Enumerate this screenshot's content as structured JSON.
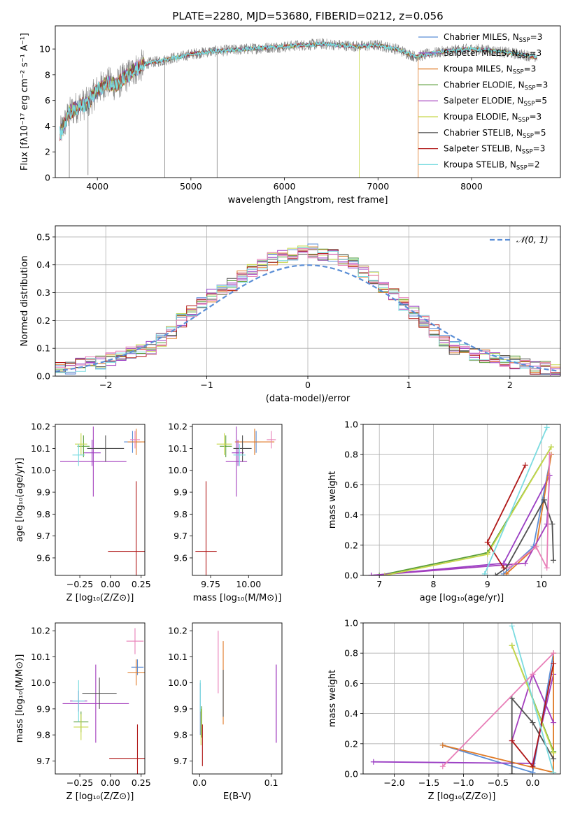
{
  "figure": {
    "title": "PLATE=2280, MJD=53680, FIBERID=0212, z=0.056"
  },
  "palette": {
    "Chabrier MILES": "#5b8ed6",
    "Salpeter MILES": "#9b3fc4",
    "Kroupa MILES": "#e07b28",
    "Chabrier ELODIE": "#5a9e3a",
    "Salpeter ELODIE": "#a43fbe",
    "Kroupa ELODIE": "#c7d84a",
    "Chabrier STELIB": "#505050",
    "Salpeter STELIB": "#b01818",
    "Kroupa STELIB": "#7adbe0",
    "pink": "#e87fb8",
    "data": "#808080",
    "gauss": "#5b8ed6"
  },
  "chart_data": [
    {
      "id": "spectrum",
      "type": "line",
      "title": "PLATE=2280, MJD=53680, FIBERID=0212, z=0.056",
      "xlabel": "wavelength [Angstrom, rest frame]",
      "ylabel": "Flux [fλ10⁻¹⁷ erg cm⁻² s⁻¹ A⁻¹]",
      "xlim": [
        3550,
        8950
      ],
      "ylim": [
        0,
        11.8
      ],
      "xticks": [
        4000,
        5000,
        6000,
        7000,
        8000
      ],
      "yticks": [
        0,
        2,
        4,
        6,
        8,
        10
      ],
      "grid": false,
      "legend_position": "top-right",
      "legend": [
        "Chabrier MILES, N_SSP=3",
        "Salpeter MILES, N_SSP=3",
        "Kroupa MILES, N_SSP=3",
        "Chabrier ELODIE, N_SSP=3",
        "Salpeter ELODIE, N_SSP=5",
        "Kroupa ELODIE, N_SSP=3",
        "Chabrier STELIB, N_SSP=5",
        "Salpeter STELIB, N_SSP=3",
        "Kroupa STELIB, N_SSP=2"
      ],
      "continuum": [
        [
          3600,
          3.4
        ],
        [
          3700,
          5.0
        ],
        [
          3800,
          5.6
        ],
        [
          3900,
          5.8
        ],
        [
          4000,
          6.8
        ],
        [
          4100,
          7.4
        ],
        [
          4200,
          7.2
        ],
        [
          4300,
          7.8
        ],
        [
          4400,
          8.4
        ],
        [
          4500,
          8.8
        ],
        [
          4600,
          9.0
        ],
        [
          4700,
          9.1
        ],
        [
          4800,
          9.3
        ],
        [
          4900,
          9.4
        ],
        [
          5000,
          9.6
        ],
        [
          5200,
          9.8
        ],
        [
          5400,
          9.9
        ],
        [
          5600,
          10.0
        ],
        [
          5800,
          10.1
        ],
        [
          6000,
          10.2
        ],
        [
          6200,
          10.3
        ],
        [
          6400,
          10.4
        ],
        [
          6600,
          10.3
        ],
        [
          6800,
          10.2
        ],
        [
          7000,
          10.3
        ],
        [
          7200,
          10.0
        ],
        [
          7400,
          9.4
        ],
        [
          7600,
          9.7
        ],
        [
          7800,
          9.9
        ],
        [
          8000,
          10.0
        ],
        [
          8200,
          9.9
        ],
        [
          8400,
          9.7
        ],
        [
          8600,
          9.5
        ],
        [
          8700,
          9.3
        ]
      ]
    },
    {
      "id": "residuals",
      "type": "bar",
      "xlabel": "(data-model)/error",
      "ylabel": "Normed distribution",
      "xlim": [
        -2.5,
        2.5
      ],
      "ylim": [
        0,
        0.54
      ],
      "xticks": [
        -2,
        -1,
        0,
        1,
        2
      ],
      "yticks": [
        0.0,
        0.1,
        0.2,
        0.3,
        0.4,
        0.5
      ],
      "grid": true,
      "legend_position": "top-right",
      "legend": [
        "𝒩(0, 1)"
      ],
      "bin_edges_start": -2.5,
      "bin_width": 0.1,
      "histogram_envelope": [
        0.03,
        0.03,
        0.04,
        0.05,
        0.05,
        0.06,
        0.07,
        0.08,
        0.09,
        0.1,
        0.13,
        0.16,
        0.2,
        0.23,
        0.26,
        0.29,
        0.31,
        0.33,
        0.36,
        0.38,
        0.4,
        0.42,
        0.43,
        0.44,
        0.45,
        0.45,
        0.44,
        0.43,
        0.42,
        0.4,
        0.38,
        0.35,
        0.32,
        0.29,
        0.26,
        0.23,
        0.2,
        0.16,
        0.13,
        0.1,
        0.09,
        0.08,
        0.07,
        0.06,
        0.05,
        0.05,
        0.04,
        0.03,
        0.03,
        0.02
      ],
      "gaussian": {
        "mean": 0,
        "sigma": 1
      }
    },
    {
      "id": "age-vs-Z",
      "type": "scatter",
      "xlabel": "Z [log₁₀(Z/Z⊙)]",
      "ylabel": "age  [log₁₀(age/yr)]",
      "xlim": [
        -0.45,
        0.28
      ],
      "ylim": [
        9.52,
        10.21
      ],
      "xticks": [
        -0.25,
        0.0,
        0.25
      ],
      "yticks": [
        9.6,
        9.7,
        9.8,
        9.9,
        10.0,
        10.1,
        10.2
      ],
      "grid": false,
      "points": [
        {
          "series": "Chabrier MILES",
          "x": 0.18,
          "y": 10.13,
          "xerr": 0.07,
          "yerr": 0.05
        },
        {
          "series": "Salpeter MILES",
          "x": -0.15,
          "y": 10.08,
          "xerr": 0.07,
          "yerr": 0.06
        },
        {
          "series": "Kroupa MILES",
          "x": 0.21,
          "y": 10.13,
          "xerr": 0.07,
          "yerr": 0.06
        },
        {
          "series": "Chabrier ELODIE",
          "x": -0.22,
          "y": 10.11,
          "xerr": 0.05,
          "yerr": 0.05
        },
        {
          "series": "Salpeter ELODIE",
          "x": -0.14,
          "y": 10.04,
          "xerr": 0.27,
          "yerr": 0.16
        },
        {
          "series": "Kroupa ELODIE",
          "x": -0.24,
          "y": 10.12,
          "xerr": 0.05,
          "yerr": 0.05
        },
        {
          "series": "Chabrier STELIB",
          "x": -0.04,
          "y": 10.1,
          "xerr": 0.15,
          "yerr": 0.06
        },
        {
          "series": "Salpeter STELIB",
          "x": 0.21,
          "y": 9.63,
          "xerr": 0.23,
          "yerr": 0.32
        },
        {
          "series": "Kroupa STELIB",
          "x": -0.26,
          "y": 10.07,
          "xerr": 0.05,
          "yerr": 0.05
        },
        {
          "series": "pink",
          "x": 0.2,
          "y": 10.14,
          "xerr": 0.04,
          "yerr": 0.04
        }
      ]
    },
    {
      "id": "age-vs-mass",
      "type": "scatter",
      "xlabel": "mass [log₁₀(M/M⊙)]",
      "ylabel": "",
      "xlim": [
        9.63,
        10.22
      ],
      "ylim": [
        9.52,
        10.21
      ],
      "xticks": [
        9.75,
        10.0
      ],
      "yticks": [
        9.6,
        9.7,
        9.8,
        9.9,
        10.0,
        10.1,
        10.2
      ],
      "grid": false,
      "points": [
        {
          "series": "Chabrier MILES",
          "x": 10.05,
          "y": 10.13,
          "xerr": 0.03,
          "yerr": 0.05
        },
        {
          "series": "Salpeter MILES",
          "x": 9.93,
          "y": 10.08,
          "xerr": 0.04,
          "yerr": 0.06
        },
        {
          "series": "Kroupa MILES",
          "x": 10.04,
          "y": 10.13,
          "xerr": 0.13,
          "yerr": 0.06
        },
        {
          "series": "Chabrier ELODIE",
          "x": 9.85,
          "y": 10.11,
          "xerr": 0.04,
          "yerr": 0.05
        },
        {
          "series": "Salpeter ELODIE",
          "x": 9.92,
          "y": 10.04,
          "xerr": 0.07,
          "yerr": 0.16
        },
        {
          "series": "Kroupa ELODIE",
          "x": 9.84,
          "y": 10.12,
          "xerr": 0.05,
          "yerr": 0.05
        },
        {
          "series": "Chabrier STELIB",
          "x": 9.96,
          "y": 10.1,
          "xerr": 0.06,
          "yerr": 0.06
        },
        {
          "series": "Salpeter STELIB",
          "x": 9.72,
          "y": 9.63,
          "xerr": 0.07,
          "yerr": 0.32
        },
        {
          "series": "Kroupa STELIB",
          "x": 9.94,
          "y": 10.07,
          "xerr": 0.04,
          "yerr": 0.05
        },
        {
          "series": "pink",
          "x": 10.15,
          "y": 10.14,
          "xerr": 0.03,
          "yerr": 0.04
        }
      ]
    },
    {
      "id": "weight-vs-age",
      "type": "line",
      "xlabel": "age  [log₁₀(age/yr)]",
      "ylabel": "mass weight",
      "xlim": [
        6.7,
        10.35
      ],
      "ylim": [
        0,
        1.0
      ],
      "xticks": [
        7,
        8,
        9,
        10
      ],
      "yticks": [
        0.0,
        0.2,
        0.4,
        0.6,
        0.8,
        1.0
      ],
      "grid": true,
      "series": [
        {
          "name": "Chabrier MILES",
          "x": [
            9.3,
            9.85,
            10.18
          ],
          "y": [
            0.01,
            0.19,
            0.8
          ]
        },
        {
          "name": "Salpeter MILES",
          "x": [
            6.85,
            9.3,
            10.15
          ],
          "y": [
            0.0,
            0.08,
            0.66
          ]
        },
        {
          "name": "Kroupa MILES",
          "x": [
            9.35,
            9.9,
            10.18
          ],
          "y": [
            0.01,
            0.19,
            0.8
          ]
        },
        {
          "name": "Chabrier ELODIE",
          "x": [
            7.0,
            9.0,
            10.18
          ],
          "y": [
            0.0,
            0.15,
            0.85
          ]
        },
        {
          "name": "Salpeter ELODIE",
          "x": [
            6.85,
            9.7,
            10.1,
            10.15
          ],
          "y": [
            0.0,
            0.08,
            0.34,
            0.66
          ]
        },
        {
          "name": "Kroupa ELODIE",
          "x": [
            7.1,
            9.0,
            10.18
          ],
          "y": [
            0.0,
            0.14,
            0.85
          ]
        },
        {
          "name": "Chabrier STELIB",
          "x": [
            9.15,
            9.35,
            10.05,
            10.2,
            10.22
          ],
          "y": [
            0.0,
            0.05,
            0.5,
            0.34,
            0.1
          ]
        },
        {
          "name": "Salpeter STELIB",
          "x": [
            9.3,
            9.0,
            9.7
          ],
          "y": [
            0.05,
            0.22,
            0.73
          ]
        },
        {
          "name": "Kroupa STELIB",
          "x": [
            8.95,
            10.1
          ],
          "y": [
            0.01,
            0.98
          ]
        },
        {
          "name": "pink",
          "x": [
            9.4,
            9.9,
            10.1,
            10.15
          ],
          "y": [
            0.05,
            0.19,
            0.05,
            0.8
          ]
        }
      ]
    },
    {
      "id": "mass-vs-Z",
      "type": "scatter",
      "xlabel": "Z [log₁₀(Z/Z⊙)]",
      "ylabel": "mass [log₁₀(M/M⊙)]",
      "xlim": [
        -0.45,
        0.28
      ],
      "ylim": [
        9.65,
        10.23
      ],
      "xticks": [
        -0.25,
        0.0,
        0.25
      ],
      "yticks": [
        9.7,
        9.8,
        9.9,
        10.0,
        10.1,
        10.2
      ],
      "grid": false,
      "points": [
        {
          "series": "Chabrier MILES",
          "x": 0.22,
          "y": 10.06,
          "xerr": 0.05,
          "yerr": 0.03
        },
        {
          "series": "Salpeter MILES",
          "x": -0.26,
          "y": 9.93,
          "xerr": 0.07,
          "yerr": 0.04
        },
        {
          "series": "Kroupa MILES",
          "x": 0.21,
          "y": 10.04,
          "xerr": 0.07,
          "yerr": 0.05
        },
        {
          "series": "Chabrier ELODIE",
          "x": -0.24,
          "y": 9.85,
          "xerr": 0.06,
          "yerr": 0.04
        },
        {
          "series": "Salpeter ELODIE",
          "x": -0.12,
          "y": 9.92,
          "xerr": 0.27,
          "yerr": 0.15
        },
        {
          "series": "Kroupa ELODIE",
          "x": -0.24,
          "y": 9.83,
          "xerr": 0.06,
          "yerr": 0.05
        },
        {
          "series": "Chabrier STELIB",
          "x": -0.09,
          "y": 9.96,
          "xerr": 0.14,
          "yerr": 0.06
        },
        {
          "series": "Salpeter STELIB",
          "x": 0.22,
          "y": 9.71,
          "xerr": 0.23,
          "yerr": 0.13
        },
        {
          "series": "Kroupa STELIB",
          "x": -0.26,
          "y": 9.93,
          "xerr": 0.05,
          "yerr": 0.08
        },
        {
          "series": "pink",
          "x": 0.2,
          "y": 10.16,
          "xerr": 0.07,
          "yerr": 0.05
        }
      ]
    },
    {
      "id": "mass-vs-EBV",
      "type": "scatter",
      "xlabel": "E(B-V)",
      "ylabel": "",
      "xlim": [
        -0.01,
        0.115
      ],
      "ylim": [
        9.65,
        10.23
      ],
      "xticks": [
        0.0,
        0.1
      ],
      "yticks": [
        9.7,
        9.8,
        9.9,
        10.0,
        10.1,
        10.2
      ],
      "grid": false,
      "points": [
        {
          "series": "Chabrier MILES",
          "x": 0.001,
          "y": 9.9,
          "xerr": 0,
          "yerr": 0.1
        },
        {
          "series": "Salpeter MILES",
          "x": 0.107,
          "y": 9.92,
          "xerr": 0,
          "yerr": 0.15
        },
        {
          "series": "Kroupa MILES",
          "x": 0.033,
          "y": 10.0,
          "xerr": 0,
          "yerr": 0.16
        },
        {
          "series": "Chabrier ELODIE",
          "x": 0.003,
          "y": 9.85,
          "xerr": 0,
          "yerr": 0.06
        },
        {
          "series": "Salpeter ELODIE",
          "x": 0.107,
          "y": 9.92,
          "xerr": 0,
          "yerr": 0.15
        },
        {
          "series": "Kroupa ELODIE",
          "x": 0.002,
          "y": 9.83,
          "xerr": 0,
          "yerr": 0.07
        },
        {
          "series": "Chabrier STELIB",
          "x": 0.033,
          "y": 9.96,
          "xerr": 0,
          "yerr": 0.09
        },
        {
          "series": "Salpeter STELIB",
          "x": 0.004,
          "y": 9.76,
          "xerr": 0,
          "yerr": 0.08
        },
        {
          "series": "Kroupa STELIB",
          "x": 0.001,
          "y": 9.95,
          "xerr": 0,
          "yerr": 0.06
        },
        {
          "series": "pink",
          "x": 0.026,
          "y": 10.08,
          "xerr": 0,
          "yerr": 0.12
        }
      ]
    },
    {
      "id": "weight-vs-Z",
      "type": "line",
      "xlabel": "Z [log₁₀(Z/Z⊙)]",
      "ylabel": "mass weight",
      "xlim": [
        -2.45,
        0.4
      ],
      "ylim": [
        0,
        1.0
      ],
      "xticks": [
        -2.0,
        -1.5,
        -1.0,
        -0.5,
        0.0
      ],
      "yticks": [
        0.0,
        0.2,
        0.4,
        0.6,
        0.8,
        1.0
      ],
      "grid": true,
      "series": [
        {
          "name": "Chabrier MILES",
          "x": [
            -1.3,
            0.0,
            0.3
          ],
          "y": [
            0.19,
            0.01,
            0.8
          ]
        },
        {
          "name": "Salpeter MILES",
          "x": [
            -2.3,
            0.0,
            0.3
          ],
          "y": [
            0.08,
            0.07,
            0.66
          ]
        },
        {
          "name": "Kroupa MILES",
          "x": [
            -1.3,
            0.3,
            0.3
          ],
          "y": [
            0.19,
            0.01,
            0.8
          ]
        },
        {
          "name": "Chabrier ELODIE",
          "x": [
            -0.3,
            0.3
          ],
          "y": [
            0.85,
            0.15
          ]
        },
        {
          "name": "Salpeter ELODIE",
          "x": [
            -0.3,
            0.0,
            0.3
          ],
          "y": [
            0.22,
            0.66,
            0.34
          ]
        },
        {
          "name": "Kroupa ELODIE",
          "x": [
            -0.3,
            0.3
          ],
          "y": [
            0.85,
            0.14
          ]
        },
        {
          "name": "Chabrier STELIB",
          "x": [
            -0.3,
            -0.3,
            0.0,
            0.3
          ],
          "y": [
            0.0,
            0.5,
            0.34,
            0.1
          ]
        },
        {
          "name": "Salpeter STELIB",
          "x": [
            -0.3,
            0.0,
            0.3
          ],
          "y": [
            0.22,
            0.05,
            0.73
          ]
        },
        {
          "name": "Kroupa STELIB",
          "x": [
            -0.3,
            0.3
          ],
          "y": [
            0.98,
            0.01
          ]
        },
        {
          "name": "pink",
          "x": [
            -1.3,
            0.0,
            0.3
          ],
          "y": [
            0.05,
            0.66,
            0.8
          ]
        }
      ]
    }
  ]
}
